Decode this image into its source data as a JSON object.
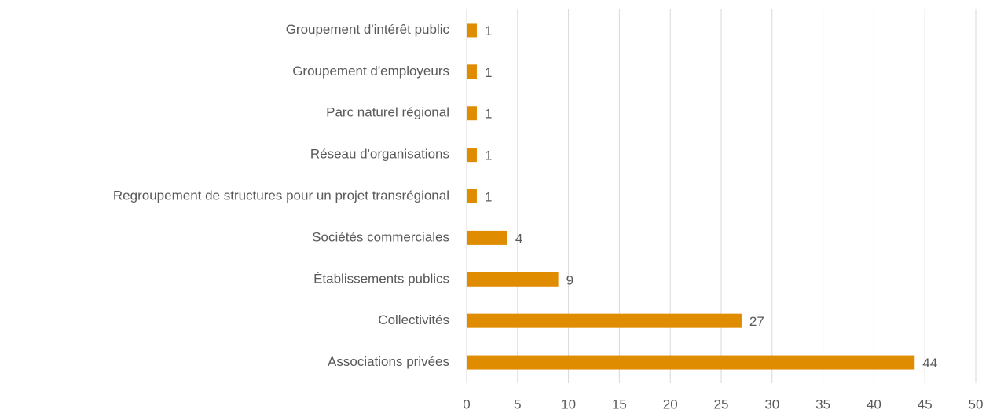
{
  "chart_data": {
    "type": "bar",
    "orientation": "horizontal",
    "categories": [
      "Groupement d'intérêt public",
      "Groupement d'employeurs",
      "Parc naturel régional",
      "Réseau d'organisations",
      "Regroupement de structures pour un projet transrégional",
      "Sociétés commerciales",
      "Établissements publics",
      "Collectivités",
      "Associations privées"
    ],
    "values": [
      1,
      1,
      1,
      1,
      1,
      4,
      9,
      27,
      44
    ],
    "color": "#df8c00",
    "xlim": [
      0,
      50
    ],
    "xticks": [
      0,
      5,
      10,
      15,
      20,
      25,
      30,
      35,
      40,
      45,
      50
    ],
    "grid": true
  }
}
